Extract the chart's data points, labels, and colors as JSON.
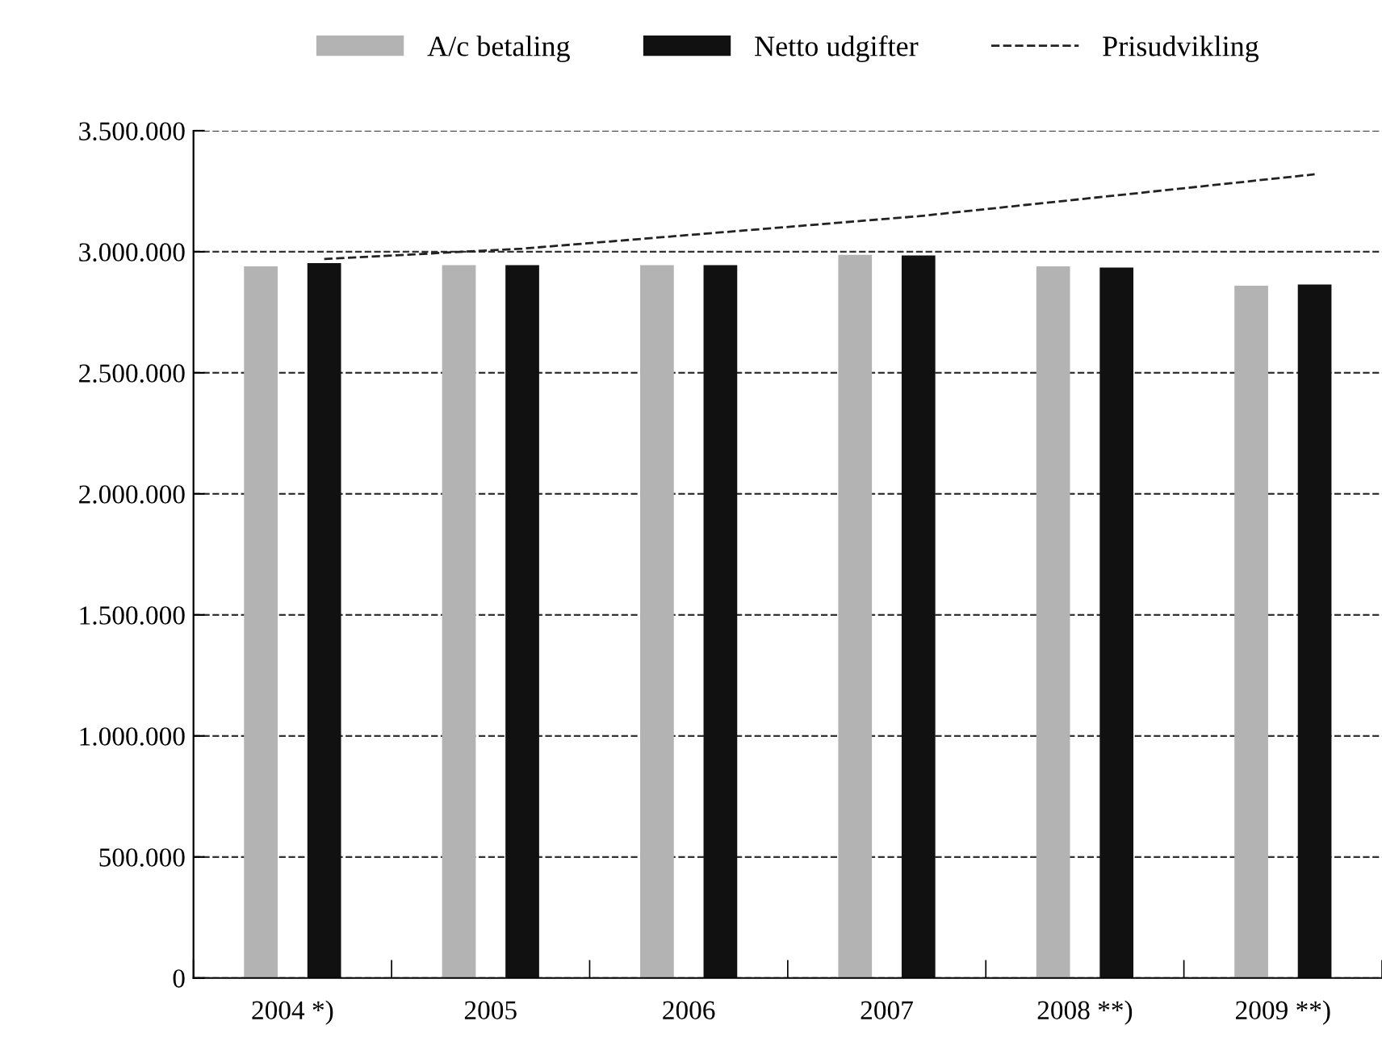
{
  "chart_data": {
    "type": "bar",
    "categories": [
      "2004 *)",
      "2005",
      "2006",
      "2007",
      "2008 **)",
      "2009 **)"
    ],
    "series": [
      {
        "name": "A/c betaling",
        "color": "#b3b3b3",
        "values": [
          2940000,
          2945000,
          2945000,
          2987000,
          2940000,
          2860000
        ]
      },
      {
        "name": "Netto udgifter",
        "color": "#111111",
        "values": [
          2953000,
          2945000,
          2945000,
          2985000,
          2935000,
          2865000
        ]
      },
      {
        "name": "Prisudvikling",
        "type": "line",
        "color": "#222222",
        "line_style": "dashed",
        "values": [
          2970000,
          3013000,
          3080000,
          3147000,
          3233000,
          3320000
        ]
      }
    ],
    "ylim": [
      0,
      3500000
    ],
    "yticks": [
      {
        "value": 0,
        "label": "0"
      },
      {
        "value": 500000,
        "label": "500.000"
      },
      {
        "value": 1000000,
        "label": "1.000.000"
      },
      {
        "value": 1500000,
        "label": "1.500.000"
      },
      {
        "value": 2000000,
        "label": "2.000.000"
      },
      {
        "value": 2500000,
        "label": "2.500.000"
      },
      {
        "value": 3000000,
        "label": "3.000.000"
      },
      {
        "value": 3500000,
        "label": "3.500.000"
      }
    ],
    "grid": "y",
    "legend": "top"
  }
}
